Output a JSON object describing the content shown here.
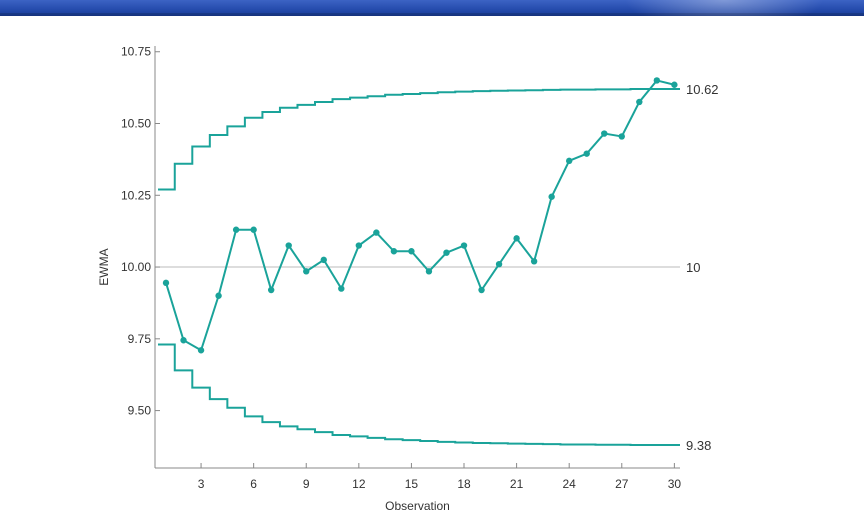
{
  "colors": {
    "header_band": "#2a4fb0",
    "series": "#1aa39a",
    "axis": "#888888",
    "center_line": "#bbbbbb",
    "text": "#333333"
  },
  "chart_data": {
    "type": "line",
    "title": "",
    "xlabel": "Observation",
    "ylabel": "EWMA",
    "xlim": [
      0,
      30
    ],
    "ylim": [
      9.3,
      10.77
    ],
    "x_ticks": [
      3,
      6,
      9,
      12,
      15,
      18,
      21,
      24,
      27,
      30
    ],
    "y_ticks": [
      9.5,
      9.75,
      10.0,
      10.25,
      10.5,
      10.75
    ],
    "y_tick_labels": [
      "9.50",
      "9.75",
      "10.00",
      "10.25",
      "10.50",
      "10.75"
    ],
    "center_line": {
      "value": 10,
      "label": "10"
    },
    "ucl_label": "10.62",
    "lcl_label": "9.38",
    "grid": false,
    "series": [
      {
        "values": [
          9.945,
          9.745,
          9.71,
          9.9,
          10.13,
          10.13,
          9.92,
          10.075,
          9.985,
          10.025,
          9.925,
          10.075,
          10.12,
          10.055,
          10.055,
          9.985,
          10.05,
          10.075,
          9.92,
          10.01,
          10.1,
          10.02,
          10.245,
          10.37,
          10.395,
          10.465,
          10.455,
          10.575,
          10.65,
          10.635
        ]
      }
    ],
    "ucl_steps": [
      10.27,
      10.36,
      10.42,
      10.46,
      10.49,
      10.52,
      10.54,
      10.555,
      10.565,
      10.575,
      10.585,
      10.59,
      10.595,
      10.6,
      10.603,
      10.606,
      10.609,
      10.611,
      10.613,
      10.614,
      10.615,
      10.616,
      10.617,
      10.618,
      10.618,
      10.619,
      10.619,
      10.62,
      10.62,
      10.62
    ],
    "lcl_steps": [
      9.73,
      9.64,
      9.58,
      9.54,
      9.51,
      9.48,
      9.46,
      9.445,
      9.435,
      9.425,
      9.415,
      9.41,
      9.405,
      9.4,
      9.397,
      9.394,
      9.391,
      9.389,
      9.387,
      9.386,
      9.385,
      9.384,
      9.383,
      9.382,
      9.382,
      9.381,
      9.381,
      9.38,
      9.38,
      9.38
    ]
  }
}
